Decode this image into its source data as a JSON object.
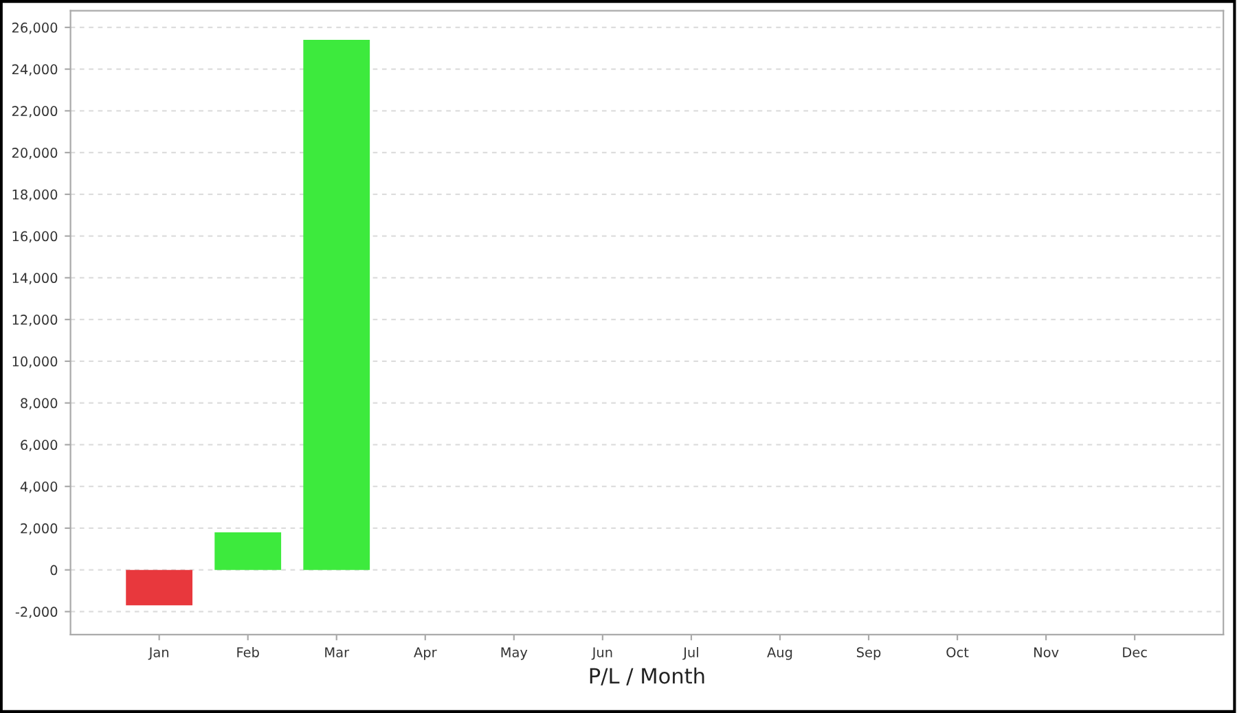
{
  "chart_data": {
    "type": "bar",
    "xlabel": "P/L / Month",
    "categories": [
      "Jan",
      "Feb",
      "Mar",
      "Apr",
      "May",
      "Jun",
      "Jul",
      "Aug",
      "Sep",
      "Oct",
      "Nov",
      "Dec"
    ],
    "values": [
      -1700,
      1800,
      25400,
      null,
      null,
      null,
      null,
      null,
      null,
      null,
      null,
      null
    ],
    "colors": [
      "#e8383d",
      "#3dea3d",
      "#3dea3d",
      null,
      null,
      null,
      null,
      null,
      null,
      null,
      null,
      null
    ],
    "ylim": [
      -3100,
      26800
    ],
    "yticks": [
      {
        "value": -2000,
        "label": "-2,000"
      },
      0,
      {
        "value": 2000,
        "label": "2,000"
      },
      {
        "value": 4000,
        "label": "4,000"
      },
      {
        "value": 6000,
        "label": "6,000"
      },
      {
        "value": 8000,
        "label": "8,000"
      },
      {
        "value": 10000,
        "label": "10,000"
      },
      {
        "value": 12000,
        "label": "12,000"
      },
      {
        "value": 14000,
        "label": "14,000"
      },
      {
        "value": 16000,
        "label": "16,000"
      },
      {
        "value": 18000,
        "label": "18,000"
      },
      {
        "value": 20000,
        "label": "20,000"
      },
      {
        "value": 22000,
        "label": "22,000"
      },
      {
        "value": 24000,
        "label": "24,000"
      },
      {
        "value": 26000,
        "label": "26,000"
      }
    ],
    "grid": "y",
    "legend": false
  }
}
